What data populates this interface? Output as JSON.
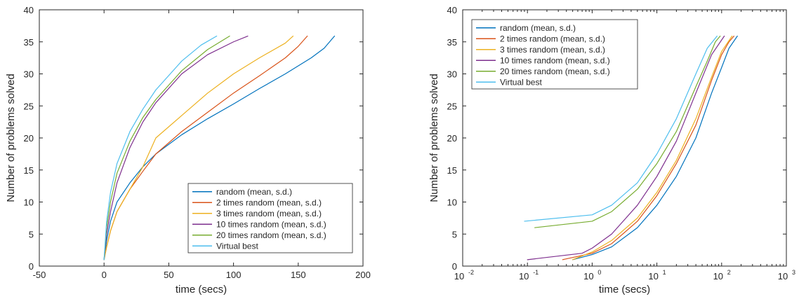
{
  "chart_data": [
    {
      "type": "line",
      "xlabel": "time (secs)",
      "ylabel": "Number of problems solved",
      "xlim": [
        -50,
        200
      ],
      "ylim": [
        0,
        40
      ],
      "xticks": [
        -50,
        0,
        50,
        100,
        150,
        200
      ],
      "yticks": [
        0,
        5,
        10,
        15,
        20,
        25,
        30,
        35,
        40
      ],
      "xtick_labels": [
        "-50",
        "0",
        "50",
        "100",
        "150",
        "200"
      ],
      "ytick_labels": [
        "0",
        "5",
        "10",
        "15",
        "20",
        "25",
        "30",
        "35",
        "40"
      ],
      "x_scale": "linear",
      "grid": false,
      "legend_position": "bottom-right",
      "series": [
        {
          "name": "random (mean, s.d.)",
          "color": "#0072BD",
          "points": [
            [
              0,
              1
            ],
            [
              2,
              4
            ],
            [
              5,
              7
            ],
            [
              10,
              10
            ],
            [
              20,
              13
            ],
            [
              30,
              15.5
            ],
            [
              40,
              17.5
            ],
            [
              60,
              20.5
            ],
            [
              80,
              23
            ],
            [
              100,
              25.3
            ],
            [
              120,
              27.7
            ],
            [
              140,
              30
            ],
            [
              160,
              32.5
            ],
            [
              170,
              34
            ],
            [
              178,
              35.9
            ]
          ]
        },
        {
          "name": "2 times random (mean, s.d.)",
          "color": "#D95319",
          "points": [
            [
              0,
              1
            ],
            [
              2,
              3
            ],
            [
              5,
              5.5
            ],
            [
              10,
              8.5
            ],
            [
              20,
              12
            ],
            [
              30,
              14.8
            ],
            [
              40,
              17.5
            ],
            [
              60,
              21
            ],
            [
              80,
              24
            ],
            [
              100,
              27
            ],
            [
              120,
              29.7
            ],
            [
              140,
              32.5
            ],
            [
              150,
              34.3
            ],
            [
              157,
              35.9
            ]
          ]
        },
        {
          "name": "3 times random (mean, s.d.)",
          "color": "#EDB120",
          "points": [
            [
              0,
              1
            ],
            [
              2,
              3
            ],
            [
              5,
              5.5
            ],
            [
              10,
              8.5
            ],
            [
              20,
              12
            ],
            [
              30,
              15.5
            ],
            [
              40,
              20
            ],
            [
              60,
              23.5
            ],
            [
              80,
              27
            ],
            [
              100,
              30
            ],
            [
              120,
              32.5
            ],
            [
              140,
              34.8
            ],
            [
              146,
              35.9
            ]
          ]
        },
        {
          "name": "10 times random (mean, s.d.)",
          "color": "#7E2F8E",
          "points": [
            [
              0,
              1
            ],
            [
              2,
              5
            ],
            [
              5,
              8.5
            ],
            [
              10,
              13
            ],
            [
              20,
              18.5
            ],
            [
              30,
              22.5
            ],
            [
              40,
              25.5
            ],
            [
              60,
              30
            ],
            [
              80,
              33
            ],
            [
              100,
              35
            ],
            [
              111,
              35.9
            ]
          ]
        },
        {
          "name": "20 times random (mean, s.d.)",
          "color": "#77AC30",
          "points": [
            [
              0,
              1
            ],
            [
              2,
              6
            ],
            [
              5,
              10
            ],
            [
              10,
              14.5
            ],
            [
              20,
              19.5
            ],
            [
              30,
              23.2
            ],
            [
              40,
              26
            ],
            [
              60,
              30.5
            ],
            [
              80,
              33.8
            ],
            [
              97,
              35.9
            ]
          ]
        },
        {
          "name": "Virtual best",
          "color": "#4DBEEE",
          "points": [
            [
              0,
              1
            ],
            [
              2,
              7
            ],
            [
              5,
              11.5
            ],
            [
              10,
              16
            ],
            [
              20,
              21
            ],
            [
              30,
              24.5
            ],
            [
              40,
              27.5
            ],
            [
              60,
              32
            ],
            [
              75,
              34.5
            ],
            [
              87,
              35.9
            ]
          ]
        }
      ]
    },
    {
      "type": "line",
      "xlabel": "time (secs)",
      "ylabel": "Number of problems solved",
      "xlim": [
        0.01,
        1000
      ],
      "ylim": [
        0,
        40
      ],
      "x_scale": "log",
      "xticks": [
        0.01,
        0.1,
        1,
        10,
        100,
        1000
      ],
      "xtick_labels": [
        {
          "base": "10",
          "exp": "-2"
        },
        {
          "base": "10",
          "exp": "-1"
        },
        {
          "base": "10",
          "exp": "0"
        },
        {
          "base": "10",
          "exp": "1"
        },
        {
          "base": "10",
          "exp": "2"
        },
        {
          "base": "10",
          "exp": "3"
        }
      ],
      "yticks": [
        0,
        5,
        10,
        15,
        20,
        25,
        30,
        35,
        40
      ],
      "ytick_labels": [
        "0",
        "5",
        "10",
        "15",
        "20",
        "25",
        "30",
        "35",
        "40"
      ],
      "grid": false,
      "legend_position": "top-left",
      "series": [
        {
          "name": "random (mean, s.d.)",
          "color": "#0072BD",
          "points": [
            [
              0.5,
              1
            ],
            [
              1,
              1.8
            ],
            [
              2,
              3
            ],
            [
              5,
              6
            ],
            [
              10,
              9.5
            ],
            [
              20,
              14
            ],
            [
              40,
              20
            ],
            [
              70,
              27
            ],
            [
              100,
              31
            ],
            [
              130,
              34
            ],
            [
              175,
              35.9
            ]
          ]
        },
        {
          "name": "2 times random (mean, s.d.)",
          "color": "#D95319",
          "points": [
            [
              0.35,
              1
            ],
            [
              1,
              2
            ],
            [
              2,
              3.5
            ],
            [
              5,
              7
            ],
            [
              10,
              11
            ],
            [
              20,
              16
            ],
            [
              40,
              22
            ],
            [
              70,
              29
            ],
            [
              100,
              33
            ],
            [
              130,
              35
            ],
            [
              155,
              35.9
            ]
          ]
        },
        {
          "name": "3 times random (mean, s.d.)",
          "color": "#EDB120",
          "points": [
            [
              0.5,
              1
            ],
            [
              1,
              2.2
            ],
            [
              2,
              4
            ],
            [
              5,
              7.5
            ],
            [
              10,
              11.5
            ],
            [
              20,
              16.5
            ],
            [
              40,
              23
            ],
            [
              70,
              29.5
            ],
            [
              100,
              33.5
            ],
            [
              145,
              35.9
            ]
          ]
        },
        {
          "name": "10 times random (mean, s.d.)",
          "color": "#7E2F8E",
          "points": [
            [
              0.1,
              1
            ],
            [
              0.7,
              2
            ],
            [
              1,
              2.8
            ],
            [
              2,
              5
            ],
            [
              5,
              9.5
            ],
            [
              10,
              14
            ],
            [
              20,
              19.5
            ],
            [
              40,
              27
            ],
            [
              70,
              33
            ],
            [
              110,
              35.9
            ]
          ]
        },
        {
          "name": "20 times random (mean, s.d.)",
          "color": "#77AC30",
          "points": [
            [
              0.13,
              6
            ],
            [
              1,
              7
            ],
            [
              2,
              8.5
            ],
            [
              5,
              12
            ],
            [
              10,
              16
            ],
            [
              20,
              21
            ],
            [
              40,
              28
            ],
            [
              60,
              32
            ],
            [
              80,
              35
            ],
            [
              95,
              35.9
            ]
          ]
        },
        {
          "name": "Virtual best",
          "color": "#4DBEEE",
          "points": [
            [
              0.09,
              7
            ],
            [
              1,
              8
            ],
            [
              2,
              9.5
            ],
            [
              5,
              13
            ],
            [
              10,
              17.5
            ],
            [
              20,
              23
            ],
            [
              40,
              30
            ],
            [
              60,
              34
            ],
            [
              85,
              35.9
            ]
          ]
        }
      ]
    }
  ]
}
